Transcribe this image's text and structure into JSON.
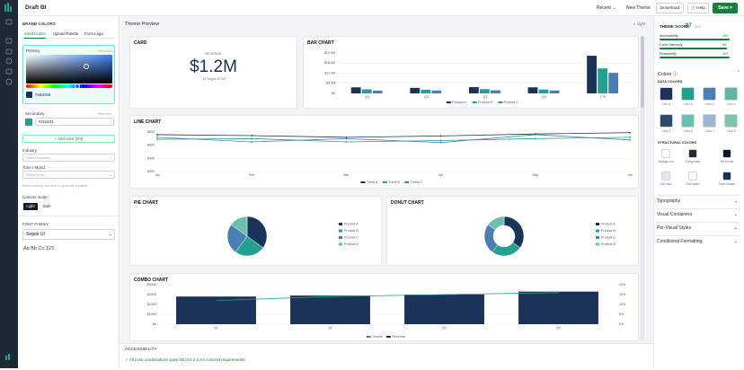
{
  "header": {
    "app_name": "Draft BI",
    "recent": "Recent",
    "new_theme": "New Theme",
    "download": "Download",
    "help": "Help",
    "save": "Save"
  },
  "left_panel": {
    "title": "BRAND COLORS",
    "tabs": [
      "Seed Colors",
      "Upload Palette",
      "From Logo"
    ],
    "primary": {
      "label": "Primary",
      "remove": "Remove",
      "hex": "#1B3358",
      "color": "#1b3358"
    },
    "secondary": {
      "label": "Secondary",
      "remove": "Remove",
      "hex": "#22a191",
      "color": "#22a191"
    },
    "add_color": "+ Add color (2/4)",
    "industry": {
      "label": "Industry",
      "placeholder": "Select industry..."
    },
    "tone": {
      "label": "Tone / Mood",
      "placeholder": "Select tone..."
    },
    "hint": "Select industry and tone to generate a palette",
    "canvas_mode": {
      "label": "Canvas mode",
      "options": [
        "Light",
        "Dark"
      ]
    },
    "font_family": {
      "label": "FONT FAMILY",
      "value": "Segoe UI",
      "sample": "Aa Bb Cc 123"
    }
  },
  "preview": {
    "title": "Theme Preview",
    "mode": "Light",
    "card": {
      "title": "CARD",
      "label": "REVENUE",
      "value": "$1.2M",
      "sub": "↑12 Target: $7.2M"
    },
    "bar_chart": {
      "title": "BAR CHART",
      "categories": [
        "Q1",
        "Q2",
        "Q3",
        "Q4",
        "YTD"
      ],
      "series": [
        {
          "name": "Product A",
          "color": "#1b3358",
          "values": [
            3.3,
            3.0,
            3.4,
            3.3,
            20.5
          ]
        },
        {
          "name": "Product B",
          "color": "#22a191",
          "values": [
            2.2,
            2.0,
            2.3,
            2.1,
            13.6
          ]
        },
        {
          "name": "Product C",
          "color": "#4a7fb5",
          "values": [
            1.5,
            1.6,
            1.7,
            1.6,
            11.2
          ]
        }
      ],
      "ylim": [
        0,
        22
      ],
      "yticks": [
        {
          "value": 0,
          "label": "$0"
        },
        {
          "value": 5.5,
          "label": "$5.5M"
        },
        {
          "value": 11,
          "label": "$11.0M"
        },
        {
          "value": 16.5,
          "label": "$16.5M"
        },
        {
          "value": 22,
          "label": "$22.0M"
        }
      ]
    },
    "line_chart": {
      "title": "LINE CHART",
      "categories": [
        "Jan",
        "Feb",
        "Mar",
        "Apr",
        "May",
        "Jun"
      ],
      "series": [
        {
          "name": "Trend A",
          "color": "#1b3358",
          "values": [
            760,
            745,
            720,
            740,
            770,
            790
          ]
        },
        {
          "name": "Trend B",
          "color": "#22a191",
          "values": [
            690,
            700,
            650,
            670,
            700,
            720
          ]
        },
        {
          "name": "Trend C",
          "color": "#4a7fb5",
          "values": [
            720,
            650,
            700,
            640,
            760,
            680
          ]
        }
      ],
      "ylim": [
        200,
        800
      ],
      "yticks": [
        {
          "value": 200,
          "label": "$200"
        },
        {
          "value": 400,
          "label": "$400"
        },
        {
          "value": 600,
          "label": "$600"
        },
        {
          "value": 800,
          "label": "$800"
        }
      ]
    },
    "pie_chart": {
      "title": "PIE CHART",
      "categories": [
        "Product A",
        "Product B",
        "Product C",
        "Product D"
      ],
      "values": [
        35,
        25,
        25,
        15
      ],
      "colors": [
        "#1b3358",
        "#22a191",
        "#4a7fb5",
        "#6cbfb0"
      ]
    },
    "donut_chart": {
      "title": "DONUT CHART",
      "categories": [
        "Product A",
        "Product B",
        "Product C",
        "Product D"
      ],
      "values": [
        35,
        25,
        25,
        15
      ],
      "colors": [
        "#1b3358",
        "#22a191",
        "#4a7fb5",
        "#6cbfb0"
      ]
    },
    "combo_chart": {
      "title": "COMBO CHART",
      "categories": [
        "Q1",
        "Q2",
        "Q3",
        "Q4"
      ],
      "series": [
        {
          "name": "Growth",
          "color": "#22a191",
          "axis": "y2",
          "values": [
            12,
            14,
            15,
            16
          ]
        },
        {
          "name": "Revenue",
          "color": "#1b3358",
          "values": [
            280,
            290,
            300,
            330
          ]
        }
      ],
      "ylim": [
        0,
        400
      ],
      "yticks": [
        {
          "value": 0,
          "label": "$0"
        },
        {
          "value": 100,
          "label": "$100K"
        },
        {
          "value": 200,
          "label": "$200K"
        },
        {
          "value": 300,
          "label": "$300K"
        },
        {
          "value": 400,
          "label": "$400K"
        }
      ],
      "y2lim": [
        0,
        20
      ],
      "y2ticks": [
        {
          "value": 0,
          "label": "0%"
        },
        {
          "value": 5,
          "label": "5%"
        },
        {
          "value": 10,
          "label": "10%"
        },
        {
          "value": 15,
          "label": "15%"
        },
        {
          "value": 20,
          "label": "20%"
        }
      ]
    },
    "accessibility": {
      "title": "ACCESSIBILITY",
      "message": "All color combinations pass WCAG 2.2 AA contrast requirements"
    }
  },
  "right_panel": {
    "score_label": "THEME SCORE",
    "score": 97,
    "score_max": "/100",
    "metrics": [
      {
        "name": "Accessibility",
        "value": 100
      },
      {
        "name": "Color Harmony",
        "value": 96
      },
      {
        "name": "Readability",
        "value": 100
      }
    ],
    "colors_title": "Colors",
    "data_colors_title": "DATA COLORS",
    "data_colors": [
      {
        "name": "Color 1",
        "color": "#1b3358"
      },
      {
        "name": "Color 2",
        "color": "#22a191"
      },
      {
        "name": "Color 3",
        "color": "#4a7fb5"
      },
      {
        "name": "Color 4",
        "color": "#5fb89e"
      },
      {
        "name": "Color 5",
        "color": "#2f4a6e"
      },
      {
        "name": "Color 6",
        "color": "#6cbfb0"
      },
      {
        "name": "Color 7",
        "color": "#9db6d3"
      },
      {
        "name": "Color 8",
        "color": "#7dc4a8"
      }
    ],
    "structural_title": "STRUCTURAL COLORS",
    "structural_colors": [
      {
        "name": "Background",
        "color": "#ffffff"
      },
      {
        "name": "Foreground",
        "color": "#252a33"
      },
      {
        "name": "Tile border",
        "color": "#111827"
      },
      {
        "name": "Grid lines",
        "color": "#e5e7eb"
      },
      {
        "name": "Grid labels",
        "color": "#f9fafb"
      },
      {
        "name": "Table header",
        "color": "#1b3358"
      }
    ],
    "sections": [
      "Typography",
      "Visual Containers",
      "Per-Visual Styles",
      "Conditional Formatting"
    ]
  }
}
